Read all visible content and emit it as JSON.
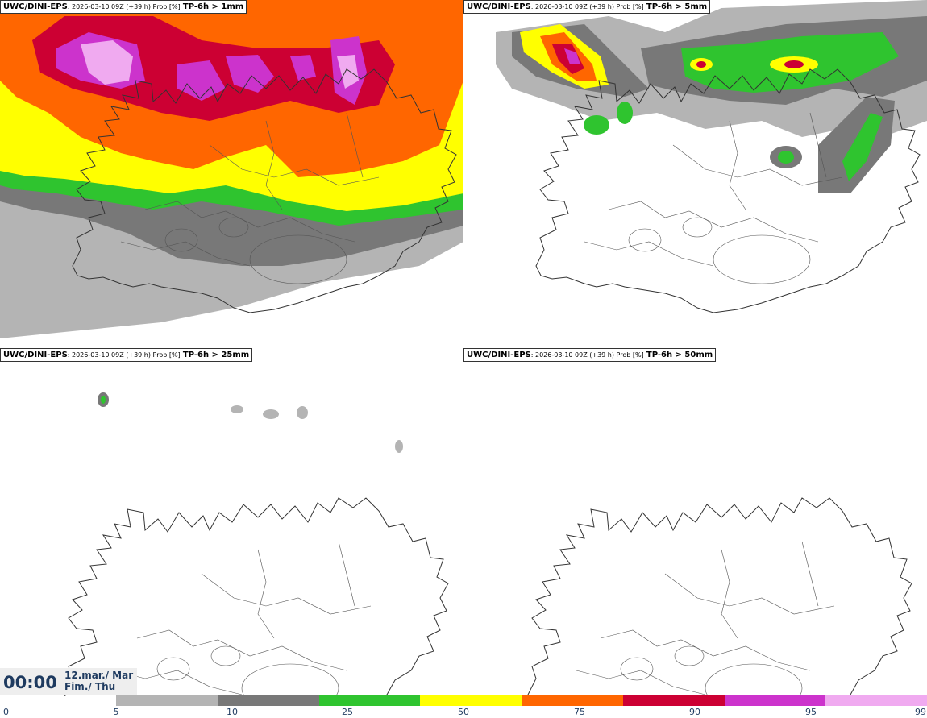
{
  "panels": [
    {
      "model": "UWC/DINI-EPS",
      "run": ": 2026-03-10 09Z (+39 h) Prob [%]",
      "field": "TP-6h > 1mm"
    },
    {
      "model": "UWC/DINI-EPS",
      "run": ": 2026-03-10 09Z (+39 h) Prob [%]",
      "field": "TP-6h > 5mm"
    },
    {
      "model": "UWC/DINI-EPS",
      "run": ": 2026-03-10 09Z (+39 h) Prob [%]",
      "field": "TP-6h > 25mm"
    },
    {
      "model": "UWC/DINI-EPS",
      "run": ": 2026-03-10 09Z (+39 h) Prob [%]",
      "field": "TP-6h > 50mm"
    }
  ],
  "valid_time": {
    "time": "00:00",
    "date_line1": "12.mar./ Mar",
    "date_line2": "Fim./ Thu"
  },
  "colorbar": {
    "ticks": [
      "0",
      "5",
      "10",
      "25",
      "50",
      "75",
      "90",
      "95",
      "99"
    ],
    "colors": [
      "#b4b4b4",
      "#787878",
      "#2fc42f",
      "#ffff00",
      "#ff6600",
      "#cc0033",
      "#cc33cc",
      "#f0aaf0"
    ]
  }
}
